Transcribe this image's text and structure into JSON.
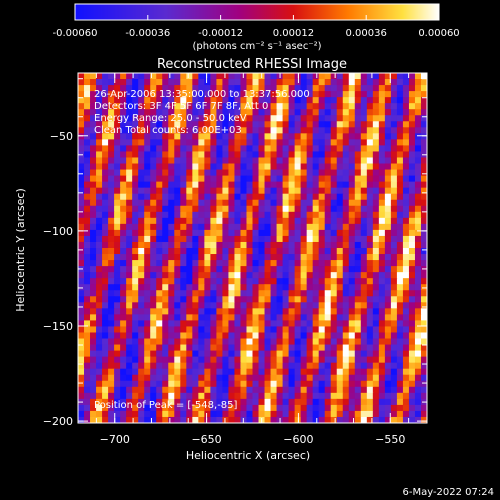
{
  "chart_data": {
    "type": "heatmap",
    "title": "Reconstructed RHESSI Image",
    "colorbar": {
      "min": -0.0006,
      "max": 0.0006,
      "tick_labels": [
        "-0.00060",
        "-0.00036",
        "-0.00012",
        "0.00012",
        "0.00036",
        "0.00060"
      ],
      "unit_label": "(photons cm⁻² s⁻¹ asec⁻²)",
      "colormap": "blue-purple-red-yellow-white"
    },
    "xlabel": "Heliocentric X (arcsec)",
    "ylabel": "Heliocentric Y (arcsec)",
    "xlim": [
      -720,
      -530
    ],
    "ylim": [
      -201,
      -17
    ],
    "x_ticks": [
      -700,
      -650,
      -600,
      -550
    ],
    "x_tick_labels": [
      "−700",
      "−650",
      "−600",
      "−550"
    ],
    "y_ticks": [
      -200,
      -150,
      -100,
      -50
    ],
    "y_tick_labels": [
      "−200",
      "−150",
      "−100",
      "−50"
    ],
    "annotations": {
      "time": "26-Apr-2006 13:35:00.000 to 13:37:56.000",
      "detectors": "Detectors: 3F 4F 5F 6F 7F 8F, Att 0",
      "energy": "Energy Range: 25.0 - 50.0 keV",
      "clean": "Clean    Total counts: 6.00E+03",
      "peak": "Position of Peak = [-548,-85]"
    },
    "peak_position": [
      -548,
      -85
    ],
    "colors": {
      "background": "#000000",
      "text": "#ffffff",
      "cmap_low": "#1010ff",
      "cmap_mid": "#a00080",
      "cmap_high": "#ffffff"
    }
  },
  "footer": {
    "date": "6-May-2022 07:24"
  }
}
